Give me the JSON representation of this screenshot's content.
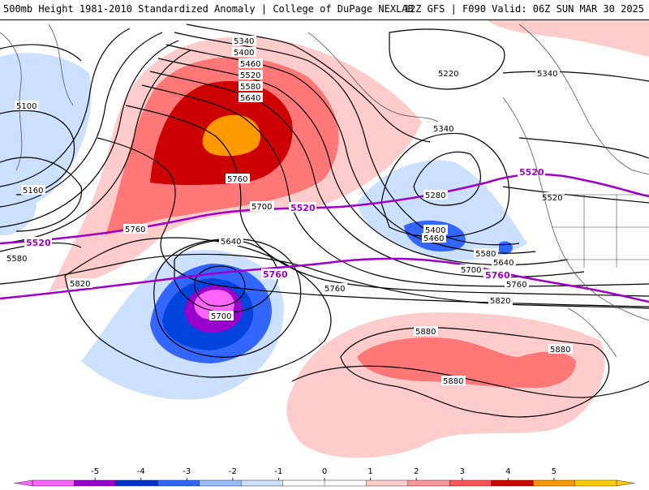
{
  "header": {
    "title_left": "500mb Height 1981-2010 Standardized Anomaly | College of DuPage NEXLAB",
    "title_right": "12Z GFS | F090 Valid: 06Z SUN MAR 30 2025"
  },
  "contour_labels": {
    "h5340": "5340",
    "h5400": "5400",
    "h5460": "5460",
    "h5520": "5520",
    "h5580": "5580",
    "h5640": "5640",
    "h5760": "5760",
    "h5100": "5100",
    "h5160": "5160",
    "h5220": "5220",
    "h5340e": "5340",
    "h5340c": "5340",
    "h5280": "5280",
    "h5400c": "5400",
    "h5460c": "5460",
    "h5580c": "5580",
    "h5640c": "5640",
    "h5700a": "5700",
    "h5700b": "5700",
    "h5700c": "5700",
    "h5760b": "5760",
    "h5760c": "5760",
    "h5760d": "5760",
    "h5640b": "5640",
    "h5820a": "5820",
    "h5820b": "5820",
    "h5880a": "5880",
    "h5880b": "5880",
    "h5880c": "5880",
    "h5580w": "5580",
    "h5520e": "5520",
    "h5760w": "5760"
  },
  "purple_labels": {
    "p5520w": "5520",
    "p5520c": "5520",
    "p5520e": "5520",
    "p5760c": "5760",
    "p5760e": "5760"
  },
  "colorbar": {
    "ticks": [
      "-5",
      "-4",
      "-3",
      "-2",
      "-1",
      "0",
      "1",
      "2",
      "3",
      "4",
      "5"
    ],
    "colors": [
      "#ff66ff",
      "#9900cc",
      "#0033cc",
      "#3366ff",
      "#99bbff",
      "#cce0ff",
      "#ffffff",
      "#ffffff",
      "#ffcccc",
      "#ff9999",
      "#ff5555",
      "#cc0000",
      "#ff9900",
      "#ffcc00"
    ]
  }
}
